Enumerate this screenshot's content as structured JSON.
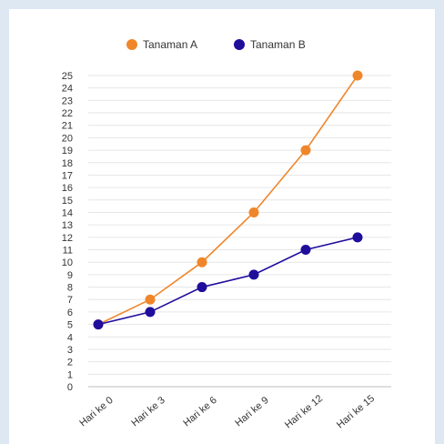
{
  "chart_data": {
    "type": "line",
    "title": "",
    "xlabel": "",
    "ylabel": "",
    "categories": [
      "Hari ke 0",
      "Hari ke 3",
      "Hari ke 6",
      "Hari ke 9",
      "Hari ke 12",
      "Hari ke 15"
    ],
    "series": [
      {
        "name": "Tanaman A",
        "color": "#f0862a",
        "values": [
          5,
          7,
          10,
          14,
          19,
          25
        ]
      },
      {
        "name": "Tanaman B",
        "color": "#1f0d9c",
        "values": [
          5,
          6,
          8,
          9,
          11,
          12
        ]
      }
    ],
    "ylim": [
      0,
      25
    ],
    "y_tick_step": 1,
    "grid": true,
    "legend_position": "top-center"
  }
}
